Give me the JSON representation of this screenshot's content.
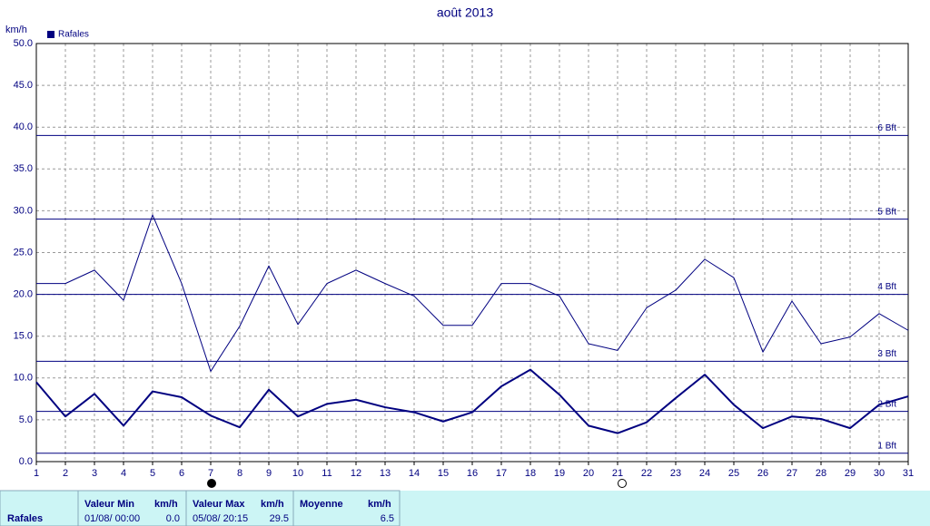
{
  "chart_data": {
    "type": "line",
    "title": "août 2013",
    "y_label": "km/h",
    "x": [
      1,
      2,
      3,
      4,
      5,
      6,
      7,
      8,
      9,
      10,
      11,
      12,
      13,
      14,
      15,
      16,
      17,
      18,
      19,
      20,
      21,
      22,
      23,
      24,
      25,
      26,
      27,
      28,
      29,
      30,
      31
    ],
    "series": [
      {
        "name": "Rafales",
        "color": "#000080",
        "line_width": 1,
        "values": [
          21.3,
          21.3,
          22.9,
          19.3,
          29.5,
          21.3,
          10.8,
          16.2,
          23.4,
          16.4,
          21.3,
          22.9,
          21.3,
          19.8,
          16.3,
          16.3,
          21.3,
          21.3,
          19.8,
          14.1,
          13.3,
          18.4,
          20.5,
          24.2,
          22.0,
          13.1,
          19.2,
          14.1,
          14.9,
          17.7,
          15.7
        ]
      },
      {
        "color": "#000080",
        "line_width": 2,
        "values": [
          9.5,
          5.4,
          8.1,
          4.3,
          8.4,
          7.7,
          5.5,
          4.1,
          8.6,
          5.4,
          6.9,
          7.4,
          6.5,
          5.9,
          4.8,
          5.9,
          9.0,
          11.0,
          8.0,
          4.3,
          3.4,
          4.7,
          7.6,
          10.4,
          6.8,
          4.0,
          5.4,
          5.1,
          4.0,
          6.8,
          7.8
        ]
      }
    ],
    "reference_lines": [
      {
        "value": 1,
        "label": "1 Bft"
      },
      {
        "value": 6,
        "label": "2 Bft"
      },
      {
        "value": 12,
        "label": "3 Bft"
      },
      {
        "value": 20,
        "label": "4 Bft"
      },
      {
        "value": 29,
        "label": "5 Bft"
      },
      {
        "value": 39,
        "label": "6 Bft"
      }
    ],
    "xlim": [
      1,
      31
    ],
    "xticks": [
      1,
      2,
      3,
      4,
      5,
      6,
      7,
      8,
      9,
      10,
      11,
      12,
      13,
      14,
      15,
      16,
      17,
      18,
      19,
      20,
      21,
      22,
      23,
      24,
      25,
      26,
      27,
      28,
      29,
      30,
      31
    ],
    "ylim": [
      0,
      50
    ],
    "yticks": [
      {
        "value": 0,
        "label": "0.0"
      },
      {
        "value": 5,
        "label": "5.0"
      },
      {
        "value": 10,
        "label": "10.0"
      },
      {
        "value": 15,
        "label": "15.0"
      },
      {
        "value": 20,
        "label": "20.0"
      },
      {
        "value": 25,
        "label": "25.0"
      },
      {
        "value": 30,
        "label": "30.0"
      },
      {
        "value": 35,
        "label": "35.0"
      },
      {
        "value": 40,
        "label": "40.0"
      },
      {
        "value": 45,
        "label": "45.0"
      },
      {
        "value": 50,
        "label": "50.0"
      }
    ],
    "grid": true,
    "legend": "top-left"
  },
  "stats_table": {
    "row_label": "Rafales",
    "headers": [
      "Valeur Min",
      "km/h",
      "Valeur Max",
      "km/h",
      "Moyenne",
      "km/h"
    ],
    "min_time": "01/08/  00:00",
    "min_value": "0.0",
    "max_time": "05/08/  20:15",
    "max_value": "29.5",
    "mean_value": "6.5"
  }
}
